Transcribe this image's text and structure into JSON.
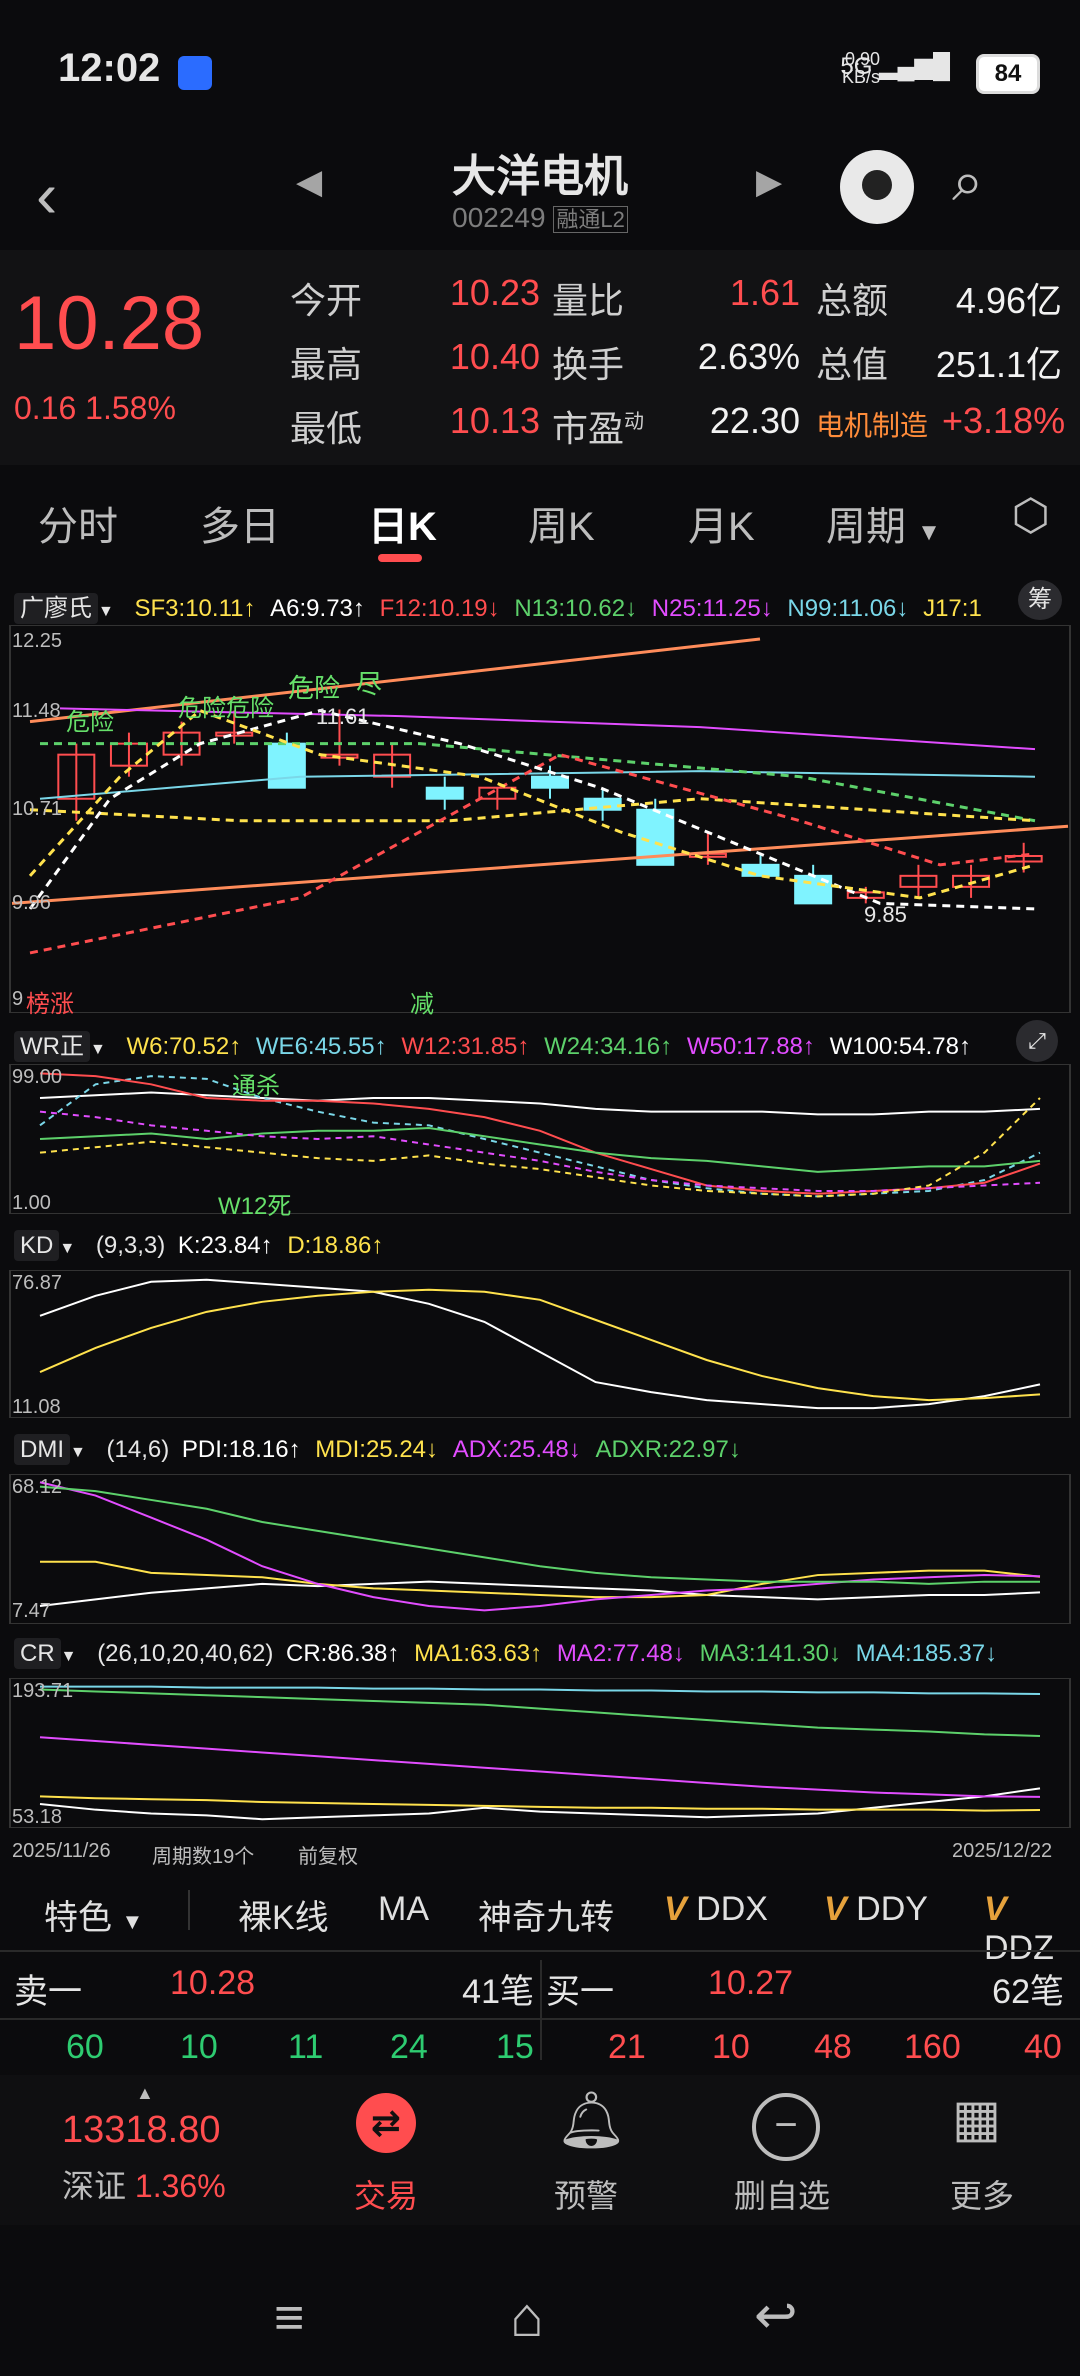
{
  "status_bar": {
    "time": "12:02",
    "net_speed": "0.90",
    "net_unit": "KB/s",
    "network": "5G",
    "battery": "84"
  },
  "header": {
    "title": "大洋电机",
    "code": "002249",
    "code_tags": "融通L2"
  },
  "quote": {
    "price": "10.28",
    "change": "0.16",
    "change_pct": "1.58%",
    "fields": [
      {
        "label": "今开",
        "value": "10.23"
      },
      {
        "label": "量比",
        "value": "1.61"
      },
      {
        "label": "总额",
        "value": "4.96亿"
      },
      {
        "label": "最高",
        "value": "10.40"
      },
      {
        "label": "换手",
        "value": "2.63%"
      },
      {
        "label": "总值",
        "value": "251.1亿"
      },
      {
        "label": "最低",
        "value": "10.13"
      },
      {
        "label": "市盈",
        "sup": "动",
        "value": "22.30"
      },
      {
        "label": "电机制造",
        "value": "+3.18%"
      }
    ]
  },
  "tabs": [
    {
      "label": "分时"
    },
    {
      "label": "多日"
    },
    {
      "label": "日K"
    },
    {
      "label": "周K"
    },
    {
      "label": "月K"
    },
    {
      "label": "周期"
    }
  ],
  "chart_data": [
    {
      "type": "candlestick",
      "indicator": "广廖氏",
      "legend": [
        "SF3:10.11↑",
        "A6:9.73↑",
        "F12:10.19↓",
        "N13:10.62↓",
        "N25:11.25↓",
        "N99:11.06↓",
        "J17:1"
      ],
      "yaxis_ticks": [
        "12.25",
        "11.48",
        "10.71",
        "9.96",
        "9"
      ],
      "annotations": [
        "危险",
        "危险危险",
        "危险",
        "尽",
        "11.61",
        "9.85",
        "榜涨",
        "减"
      ],
      "candles_ohlc": [
        [
          10.8,
          11.3,
          10.6,
          11.2
        ],
        [
          11.1,
          11.4,
          11.0,
          11.3
        ],
        [
          11.2,
          11.5,
          11.1,
          11.4
        ],
        [
          11.4,
          11.6,
          11.3,
          11.4
        ],
        [
          11.3,
          11.4,
          10.9,
          10.9
        ],
        [
          11.2,
          11.61,
          11.1,
          11.2
        ],
        [
          11.0,
          11.3,
          10.9,
          11.2
        ],
        [
          10.9,
          11.0,
          10.7,
          10.8
        ],
        [
          10.8,
          10.9,
          10.7,
          10.9
        ],
        [
          11.0,
          11.1,
          10.8,
          10.9
        ],
        [
          10.8,
          10.9,
          10.6,
          10.7
        ],
        [
          10.7,
          10.8,
          10.2,
          10.2
        ],
        [
          10.3,
          10.5,
          10.2,
          10.3
        ],
        [
          10.2,
          10.3,
          10.1,
          10.1
        ],
        [
          10.1,
          10.2,
          9.85,
          9.85
        ],
        [
          9.9,
          10.0,
          9.85,
          9.95
        ],
        [
          10.0,
          10.2,
          9.9,
          10.1
        ],
        [
          10.0,
          10.2,
          9.9,
          10.1
        ],
        [
          10.23,
          10.4,
          10.13,
          10.28
        ]
      ]
    },
    {
      "type": "line",
      "indicator": "WR正",
      "legend": [
        "W6:70.52↑",
        "WE6:45.55↑",
        "W12:31.85↑",
        "W24:34.16↑",
        "W50:17.88↑",
        "W100:54.78↑"
      ],
      "yaxis_ticks": [
        "99.00",
        "1.00"
      ],
      "annotations": [
        "通杀",
        "W12死"
      ]
    },
    {
      "type": "line",
      "indicator": "KD",
      "legend": [
        "(9,3,3)",
        "K:23.84↑",
        "D:18.86↑"
      ],
      "yaxis_ticks": [
        "76.87",
        "11.08"
      ],
      "series": [
        {
          "name": "K",
          "values": [
            58,
            68,
            75,
            76,
            74,
            72,
            70,
            64,
            55,
            40,
            25,
            20,
            16,
            14,
            12,
            12,
            14,
            18,
            23.84
          ]
        },
        {
          "name": "D",
          "values": [
            30,
            42,
            52,
            60,
            65,
            68,
            70,
            71,
            70,
            66,
            56,
            46,
            36,
            28,
            22,
            18,
            16,
            17,
            18.86
          ]
        }
      ]
    },
    {
      "type": "line",
      "indicator": "DMI",
      "legend": [
        "(14,6)",
        "PDI:18.16↑",
        "MDI:25.24↓",
        "ADX:25.48↓",
        "ADXR:22.97↓"
      ],
      "yaxis_ticks": [
        "68.12",
        "7.47"
      ],
      "series": [
        {
          "name": "PDI",
          "values": [
            12,
            15,
            18,
            20,
            22,
            21,
            22,
            23,
            22,
            21,
            20,
            19,
            17,
            16,
            15,
            16,
            17,
            17,
            18.16
          ]
        },
        {
          "name": "MDI",
          "values": [
            32,
            32,
            27,
            26,
            25,
            22,
            20,
            19,
            18,
            17,
            16,
            16,
            17,
            22,
            26,
            27,
            28,
            28,
            25.24
          ]
        },
        {
          "name": "ADX",
          "values": [
            68,
            62,
            52,
            42,
            30,
            22,
            16,
            12,
            10,
            12,
            15,
            17,
            19,
            20,
            22,
            24,
            25,
            26,
            25.48
          ]
        },
        {
          "name": "ADXR",
          "values": [
            66,
            64,
            60,
            56,
            50,
            46,
            42,
            38,
            34,
            30,
            27,
            25,
            24,
            23,
            23,
            23,
            22,
            23,
            22.97
          ]
        }
      ]
    },
    {
      "type": "line",
      "indicator": "CR",
      "legend": [
        "(26,10,20,40,62)",
        "CR:86.38↑",
        "MA1:63.63↑",
        "MA2:77.48↓",
        "MA3:141.30↓",
        "MA4:185.37↓"
      ],
      "yaxis_ticks": [
        "193.71",
        "53.18"
      ],
      "x_range_labels": [
        "2025/11/26",
        "周期数19个",
        "前复权",
        "2025/12/22"
      ],
      "series": [
        {
          "name": "CR",
          "values": [
            70,
            64,
            60,
            58,
            54,
            56,
            58,
            60,
            66,
            62,
            60,
            58,
            56,
            58,
            60,
            66,
            72,
            78,
            86.38
          ]
        },
        {
          "name": "MA1",
          "values": [
            78,
            76,
            75,
            74,
            72,
            71,
            70,
            69,
            68,
            67,
            66,
            66,
            65,
            65,
            64,
            64,
            64,
            63,
            63.63
          ]
        },
        {
          "name": "MA2",
          "values": [
            140,
            136,
            132,
            128,
            124,
            120,
            116,
            112,
            108,
            104,
            100,
            96,
            92,
            88,
            85,
            82,
            80,
            78,
            77.48
          ]
        },
        {
          "name": "MA3",
          "values": [
            190,
            188,
            186,
            184,
            182,
            180,
            178,
            176,
            174,
            170,
            166,
            162,
            158,
            154,
            150,
            148,
            146,
            143,
            141.3
          ]
        },
        {
          "name": "MA4",
          "values": [
            193,
            193,
            193,
            192,
            192,
            192,
            191,
            191,
            190,
            190,
            189,
            189,
            188,
            188,
            187,
            187,
            186,
            186,
            185.37
          ]
        }
      ]
    }
  ],
  "feature_bar": [
    "特色",
    "裸K线",
    "MA",
    "神奇九转",
    "DDX",
    "DDY",
    "DDZ"
  ],
  "order_book": {
    "sell1": {
      "label": "卖一",
      "price": "10.28",
      "count": "41笔"
    },
    "buy1": {
      "label": "买一",
      "price": "10.27",
      "count": "62笔"
    },
    "sell_queue": [
      "60",
      "10",
      "11",
      "24",
      "15"
    ],
    "buy_queue": [
      "21",
      "10",
      "48",
      "160",
      "40"
    ]
  },
  "bottom_nav": {
    "index_value": "13318.80",
    "index_name": "深证",
    "index_pct": "1.36%",
    "items": [
      {
        "label": "交易"
      },
      {
        "label": "预警"
      },
      {
        "label": "删自选"
      },
      {
        "label": "更多"
      }
    ]
  },
  "colors": {
    "up": "#ff4d4f",
    "down": "#7ff3ff",
    "accent": "#ff4d4f"
  }
}
